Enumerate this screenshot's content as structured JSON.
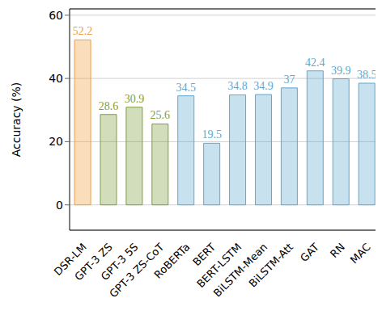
{
  "chart_data": {
    "type": "bar",
    "y_label": "Accuracy (%)",
    "categories": [
      "DSR-LM",
      "GPT-3 ZS",
      "GPT-3 5S",
      "GPT-3 ZS-CoT",
      "RoBERTa",
      "BERT",
      "BERT-LSTM",
      "BiLSTM-Mean",
      "BiLSTM-Att",
      "GAT",
      "RN",
      "MAC"
    ],
    "values": [
      52.2,
      28.6,
      30.9,
      25.6,
      34.5,
      19.5,
      34.8,
      34.9,
      37,
      42.4,
      39.9,
      38.5
    ],
    "colors": [
      "#f0a040",
      "#7f9f3f",
      "#7f9f3f",
      "#7f9f3f",
      "#5fa9d0",
      "#5fa9d0",
      "#5fa9d0",
      "#5fa9d0",
      "#5fa9d0",
      "#5fa9d0",
      "#5fa9d0",
      "#5fa9d0"
    ],
    "ylim": [
      -8,
      62
    ],
    "yticks": [
      0,
      20,
      40,
      60
    ],
    "grid": true,
    "data_labels": true
  }
}
